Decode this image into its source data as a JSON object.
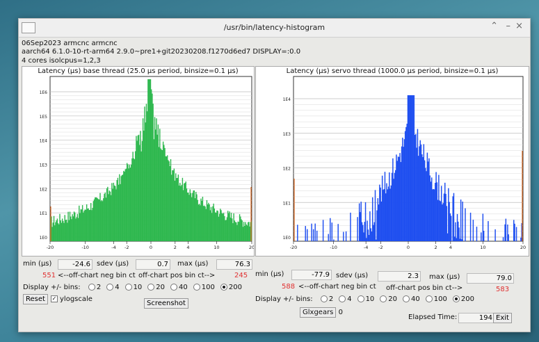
{
  "window": {
    "title": "/usr/bin/latency-histogram"
  },
  "info": {
    "line1": "06Sep2023 armcnc armcnc",
    "line2": "aarch64  6.1.0-10-rt-arm64  2.9.0~pre1+git20230208.f1270d6ed7  DISPLAY=:0.0",
    "line3": "4 cores  isolcpus=1,2,3"
  },
  "base": {
    "title": "Latency (µs) base thread (25.0 µs period, binsize=0.1 µs)",
    "color": "#2fb84f",
    "y_ticks": [
      "1E6",
      "1E5",
      "1E4",
      "1E3",
      "1E2",
      "1E1",
      "1E0"
    ],
    "x_ticks": [
      "-20",
      "-10",
      "-4",
      "-2",
      "0",
      "2",
      "4",
      "10",
      "20"
    ],
    "stats": {
      "min_label": "min (µs)",
      "min": "-24.6",
      "sdev_label": "sdev (µs)",
      "sdev": "0.7",
      "max_label": "max (µs)",
      "max": "76.3"
    },
    "neg_count": "551",
    "neg_label": "<--off-chart neg bin ct",
    "pos_label": "off-chart pos bin ct-->",
    "pos_count": "245"
  },
  "servo": {
    "title": "Latency (µs) servo thread (1000.0 µs period, binsize=0.1 µs)",
    "color": "#1f4ff0",
    "y_ticks": [
      "1E4",
      "1E3",
      "1E2",
      "1E1",
      "1E0"
    ],
    "x_ticks": [
      "-20",
      "-10",
      "-4",
      "-2",
      "0",
      "2",
      "4",
      "10",
      "20"
    ],
    "stats": {
      "min_label": "min (µs)",
      "min": "-77.9",
      "sdev_label": "sdev (µs)",
      "sdev": "2.3",
      "max_label": "max (µs)",
      "max": "79.0"
    },
    "neg_count": "588",
    "neg_label": "<--off-chart neg bin ct",
    "pos_label": "off-chart pos bin ct-->",
    "pos_count": "583"
  },
  "controls": {
    "display_bins_label": "Display +/- bins:",
    "bin_options": [
      "2",
      "4",
      "10",
      "20",
      "40",
      "100",
      "200"
    ],
    "selected_bin": "200",
    "reset_label": "Reset",
    "ylogscale_label": "ylogscale",
    "screenshot_label": "Screenshot",
    "glxgears_label": "Glxgears",
    "glxgears_value": "0",
    "elapsed_label": "Elapsed Time:",
    "elapsed_value": "194",
    "exit_label": "Exit"
  }
}
